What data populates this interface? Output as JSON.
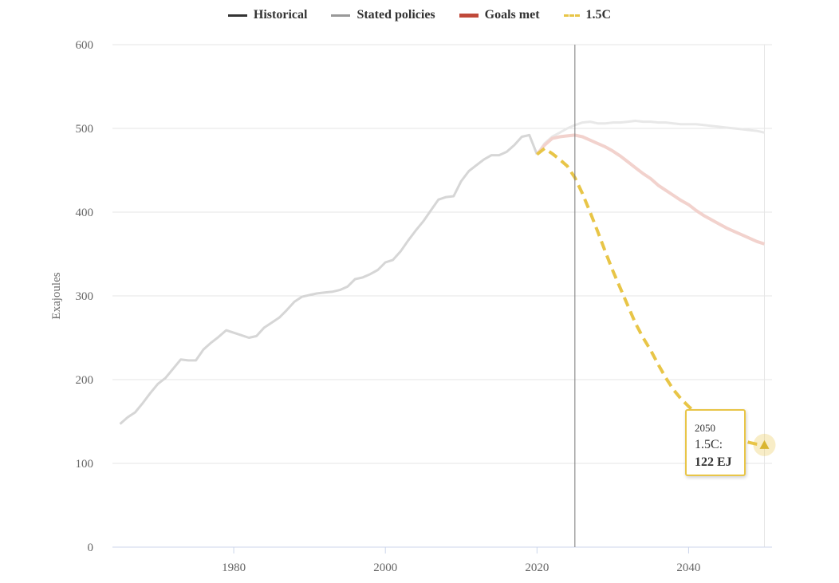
{
  "legend": [
    {
      "name": "historical",
      "label": "Historical",
      "color": "#333333",
      "style": "solid"
    },
    {
      "name": "stated-policies",
      "label": "Stated policies",
      "color": "#999999",
      "style": "solid"
    },
    {
      "name": "goals-met",
      "label": "Goals met",
      "color": "#c0493a",
      "style": "thick"
    },
    {
      "name": "1-5c",
      "label": "1.5C",
      "color": "#e8c547",
      "style": "dashed"
    }
  ],
  "tooltip": {
    "year": "2050",
    "series": "1.5C:",
    "value": "122 EJ"
  },
  "chart_data": {
    "type": "line",
    "ylabel": "Exajoules",
    "xlabel": "",
    "xlim": [
      1964,
      2051
    ],
    "ylim": [
      0,
      600
    ],
    "y_ticks": [
      0,
      100,
      200,
      300,
      400,
      500,
      600
    ],
    "x_ticks": [
      1980,
      2000,
      2020,
      2040
    ],
    "marker_year": 2025,
    "grid": true,
    "legend_position": "top-center",
    "series": [
      {
        "name": "Historical",
        "color": "#d6d6d6",
        "dashed": false,
        "width": 3,
        "x": [
          1965,
          1966,
          1967,
          1968,
          1969,
          1970,
          1971,
          1972,
          1973,
          1974,
          1975,
          1976,
          1977,
          1978,
          1979,
          1980,
          1981,
          1982,
          1983,
          1984,
          1985,
          1986,
          1987,
          1988,
          1989,
          1990,
          1991,
          1992,
          1993,
          1994,
          1995,
          1996,
          1997,
          1998,
          1999,
          2000,
          2001,
          2002,
          2003,
          2004,
          2005,
          2006,
          2007,
          2008,
          2009,
          2010,
          2011,
          2012,
          2013,
          2014,
          2015,
          2016,
          2017,
          2018,
          2019,
          2020
        ],
        "y": [
          147,
          155,
          161,
          172,
          184,
          195,
          202,
          213,
          224,
          223,
          223,
          236,
          244,
          251,
          259,
          256,
          253,
          250,
          252,
          262,
          268,
          274,
          283,
          293,
          299,
          301,
          303,
          304,
          305,
          307,
          311,
          320,
          322,
          326,
          331,
          340,
          343,
          353,
          366,
          378,
          389,
          402,
          415,
          418,
          419,
          437,
          449,
          456,
          463,
          468,
          468,
          472,
          480,
          490,
          492,
          469
        ]
      },
      {
        "name": "Stated policies",
        "color": "#e8e8e8",
        "dashed": false,
        "width": 3,
        "x": [
          2020,
          2021,
          2022,
          2023,
          2024,
          2025,
          2026,
          2027,
          2028,
          2029,
          2030,
          2031,
          2032,
          2033,
          2034,
          2035,
          2036,
          2037,
          2038,
          2039,
          2040,
          2041,
          2042,
          2043,
          2044,
          2045,
          2046,
          2047,
          2048,
          2049,
          2050
        ],
        "y": [
          469,
          482,
          490,
          495,
          500,
          504,
          507,
          508,
          506,
          506,
          507,
          507,
          508,
          509,
          508,
          508,
          507,
          507,
          506,
          505,
          505,
          505,
          504,
          503,
          502,
          501,
          500,
          499,
          498,
          497,
          495
        ]
      },
      {
        "name": "Goals met",
        "color": "#f2d2cd",
        "dashed": false,
        "width": 4,
        "x": [
          2020,
          2021,
          2022,
          2023,
          2024,
          2025,
          2026,
          2027,
          2028,
          2029,
          2030,
          2031,
          2032,
          2033,
          2034,
          2035,
          2036,
          2037,
          2038,
          2039,
          2040,
          2041,
          2042,
          2043,
          2044,
          2045,
          2046,
          2047,
          2048,
          2049,
          2050
        ],
        "y": [
          469,
          480,
          488,
          490,
          491,
          492,
          490,
          486,
          482,
          478,
          473,
          467,
          460,
          453,
          446,
          440,
          432,
          426,
          420,
          414,
          409,
          402,
          396,
          391,
          386,
          381,
          377,
          373,
          369,
          365,
          362
        ]
      },
      {
        "name": "1.5C",
        "color": "#e8c547",
        "dashed": true,
        "width": 4,
        "x": [
          2020,
          2021,
          2022,
          2023,
          2024,
          2025,
          2026,
          2027,
          2028,
          2029,
          2030,
          2031,
          2032,
          2033,
          2034,
          2035,
          2036,
          2037,
          2038,
          2039,
          2040,
          2041,
          2042,
          2043,
          2044,
          2045,
          2046,
          2047,
          2048,
          2049,
          2050
        ],
        "y": [
          469,
          476,
          470,
          463,
          455,
          441,
          422,
          400,
          377,
          353,
          330,
          309,
          288,
          267,
          250,
          235,
          218,
          202,
          188,
          177,
          168,
          160,
          153,
          146,
          140,
          136,
          132,
          128,
          125,
          123,
          122
        ]
      }
    ]
  }
}
